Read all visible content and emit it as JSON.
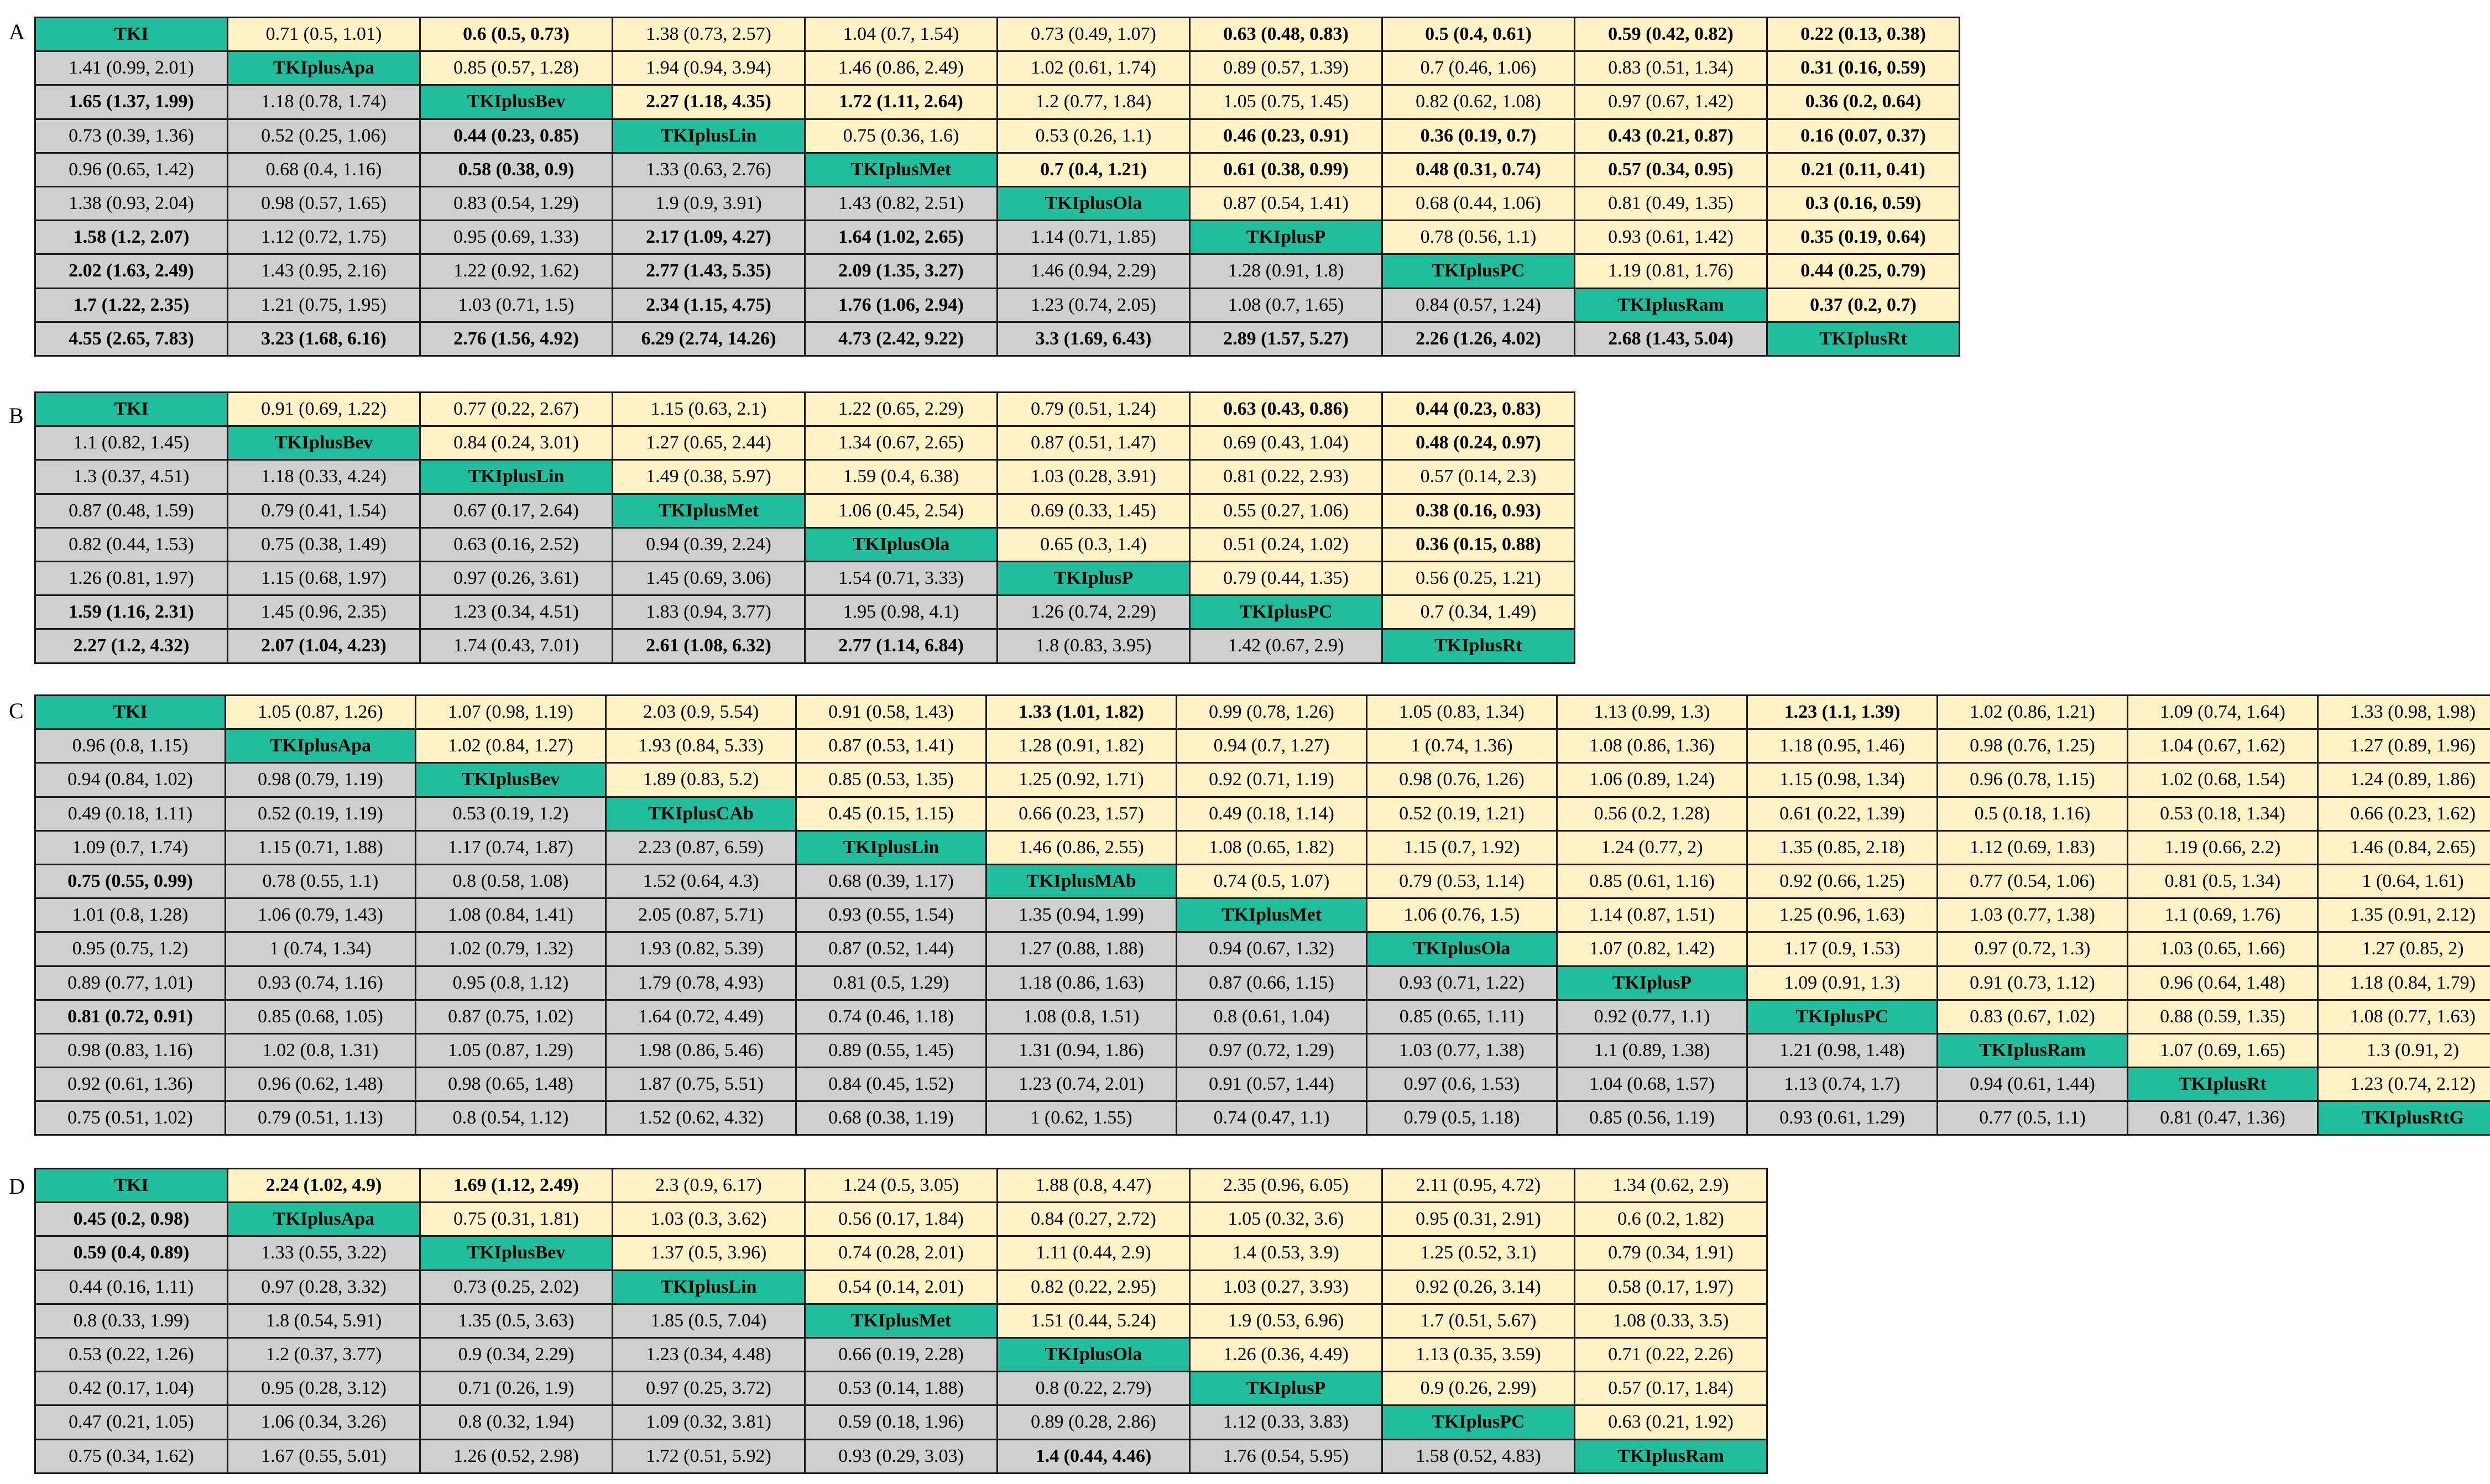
{
  "colors": {
    "diagonal": "#1fbf9d",
    "lower": "#cfcfcf",
    "upper": "#fff2c4",
    "red": "#ff1a1a",
    "blue": "#2f79c4"
  },
  "panels": [
    {
      "label": "A",
      "rows": [
        [
          "TKI",
          "0.71 (0.5, 1.01)",
          "r:0.6 (0.5, 0.73)",
          "1.38 (0.73, 2.57)",
          "1.04 (0.7, 1.54)",
          "0.73 (0.49, 1.07)",
          "r:0.63 (0.48, 0.83)",
          "r:0.5 (0.4, 0.61)",
          "r:0.59 (0.42, 0.82)",
          "r:0.22 (0.13, 0.38)"
        ],
        [
          "1.41 (0.99, 2.01)",
          "TKIplusApa",
          "0.85 (0.57, 1.28)",
          "1.94 (0.94, 3.94)",
          "1.46 (0.86, 2.49)",
          "1.02 (0.61, 1.74)",
          "0.89 (0.57, 1.39)",
          "0.7 (0.46, 1.06)",
          "0.83 (0.51, 1.34)",
          "r:0.31 (0.16, 0.59)"
        ],
        [
          "b:1.65 (1.37, 1.99)",
          "1.18 (0.78, 1.74)",
          "TKIplusBev",
          "bl:2.27 (1.18, 4.35)",
          "bl:1.72 (1.11, 2.64)",
          "1.2 (0.77, 1.84)",
          "1.05 (0.75, 1.45)",
          "0.82 (0.62, 1.08)",
          "0.97 (0.67, 1.42)",
          "r:0.36 (0.2, 0.64)"
        ],
        [
          "0.73 (0.39, 1.36)",
          "0.52 (0.25, 1.06)",
          "b:0.44 (0.23, 0.85)",
          "TKIplusLin",
          "0.75 (0.36, 1.6)",
          "0.53 (0.26, 1.1)",
          "r:0.46 (0.23, 0.91)",
          "r:0.36 (0.19, 0.7)",
          "r:0.43 (0.21, 0.87)",
          "r:0.16 (0.07, 0.37)"
        ],
        [
          "0.96 (0.65, 1.42)",
          "0.68 (0.4, 1.16)",
          "b:0.58 (0.38, 0.9)",
          "1.33 (0.63, 2.76)",
          "TKIplusMet",
          "b:0.7 (0.4, 1.21)",
          "r:0.61 (0.38, 0.99)",
          "r:0.48 (0.31, 0.74)",
          "r:0.57 (0.34, 0.95)",
          "r:0.21 (0.11, 0.41)"
        ],
        [
          "1.38 (0.93, 2.04)",
          "0.98 (0.57, 1.65)",
          "0.83 (0.54, 1.29)",
          "1.9 (0.9, 3.91)",
          "1.43 (0.82, 2.51)",
          "TKIplusOla",
          "0.87 (0.54, 1.41)",
          "0.68 (0.44, 1.06)",
          "0.81 (0.49, 1.35)",
          "r:0.3 (0.16, 0.59)"
        ],
        [
          "b:1.58 (1.2, 2.07)",
          "1.12 (0.72, 1.75)",
          "0.95 (0.69, 1.33)",
          "b:2.17 (1.09, 4.27)",
          "b:1.64 (1.02, 2.65)",
          "1.14 (0.71, 1.85)",
          "TKIplusP",
          "0.78 (0.56, 1.1)",
          "0.93 (0.61, 1.42)",
          "r:0.35 (0.19, 0.64)"
        ],
        [
          "b:2.02 (1.63, 2.49)",
          "1.43 (0.95, 2.16)",
          "1.22 (0.92, 1.62)",
          "b:2.77 (1.43, 5.35)",
          "b:2.09 (1.35, 3.27)",
          "1.46 (0.94, 2.29)",
          "1.28 (0.91, 1.8)",
          "TKIplusPC",
          "1.19 (0.81, 1.76)",
          "r:0.44 (0.25, 0.79)"
        ],
        [
          "b:1.7 (1.22, 2.35)",
          "1.21 (0.75, 1.95)",
          "1.03 (0.71, 1.5)",
          "b:2.34 (1.15, 4.75)",
          "b:1.76 (1.06, 2.94)",
          "1.23 (0.74, 2.05)",
          "1.08 (0.7, 1.65)",
          "0.84 (0.57, 1.24)",
          "TKIplusRam",
          "r:0.37 (0.2, 0.7)"
        ],
        [
          "b:4.55 (2.65, 7.83)",
          "b:3.23 (1.68, 6.16)",
          "b:2.76 (1.56, 4.92)",
          "b:6.29 (2.74, 14.26)",
          "b:4.73 (2.42, 9.22)",
          "b:3.3 (1.69, 6.43)",
          "b:2.89 (1.57, 5.27)",
          "b:2.26 (1.26, 4.02)",
          "b:2.68 (1.43, 5.04)",
          "TKIplusRt"
        ]
      ]
    },
    {
      "label": "B",
      "rows": [
        [
          "TKI",
          "0.91 (0.69, 1.22)",
          "0.77 (0.22, 2.67)",
          "1.15 (0.63, 2.1)",
          "1.22 (0.65, 2.29)",
          "0.79 (0.51, 1.24)",
          "r:0.63 (0.43, 0.86)",
          "r:0.44 (0.23, 0.83)"
        ],
        [
          "1.1 (0.82, 1.45)",
          "TKIplusBev",
          "0.84 (0.24, 3.01)",
          "1.27 (0.65, 2.44)",
          "1.34 (0.67, 2.65)",
          "0.87 (0.51, 1.47)",
          "0.69 (0.43, 1.04)",
          "r:0.48 (0.24, 0.97)"
        ],
        [
          "1.3 (0.37, 4.51)",
          "1.18 (0.33, 4.24)",
          "TKIplusLin",
          "1.49 (0.38, 5.97)",
          "1.59 (0.4, 6.38)",
          "1.03 (0.28, 3.91)",
          "0.81 (0.22, 2.93)",
          "0.57 (0.14, 2.3)"
        ],
        [
          "0.87 (0.48, 1.59)",
          "0.79 (0.41, 1.54)",
          "0.67 (0.17, 2.64)",
          "TKIplusMet",
          "1.06 (0.45, 2.54)",
          "0.69 (0.33, 1.45)",
          "0.55 (0.27, 1.06)",
          "r:0.38 (0.16, 0.93)"
        ],
        [
          "0.82 (0.44, 1.53)",
          "0.75 (0.38, 1.49)",
          "0.63 (0.16, 2.52)",
          "0.94 (0.39, 2.24)",
          "TKIplusOla",
          "0.65 (0.3, 1.4)",
          "0.51 (0.24, 1.02)",
          "r:0.36 (0.15, 0.88)"
        ],
        [
          "1.26 (0.81, 1.97)",
          "1.15 (0.68, 1.97)",
          "0.97 (0.26, 3.61)",
          "1.45 (0.69, 3.06)",
          "1.54 (0.71, 3.33)",
          "TKIplusP",
          "0.79 (0.44, 1.35)",
          "0.56 (0.25, 1.21)"
        ],
        [
          "b:1.59 (1.16, 2.31)",
          "1.45 (0.96, 2.35)",
          "1.23 (0.34, 4.51)",
          "1.83 (0.94, 3.77)",
          "1.95 (0.98, 4.1)",
          "1.26 (0.74, 2.29)",
          "TKIplusPC",
          "0.7 (0.34, 1.49)"
        ],
        [
          "b:2.27 (1.2, 4.32)",
          "b:2.07 (1.04, 4.23)",
          "1.74 (0.43, 7.01)",
          "b:2.61 (1.08, 6.32)",
          "b:2.77 (1.14, 6.84)",
          "1.8 (0.83, 3.95)",
          "1.42 (0.67, 2.9)",
          "TKIplusRt"
        ]
      ]
    },
    {
      "label": "C",
      "rows": [
        [
          "TKI",
          "1.05 (0.87, 1.26)",
          "1.07 (0.98, 1.19)",
          "2.03 (0.9, 5.54)",
          "0.91 (0.58, 1.43)",
          "r:1.33 (1.01, 1.82)",
          "0.99 (0.78, 1.26)",
          "1.05 (0.83, 1.34)",
          "1.13 (0.99, 1.3)",
          "r:1.23 (1.1, 1.39)",
          "1.02 (0.86, 1.21)",
          "1.09 (0.74, 1.64)",
          "1.33 (0.98, 1.98)"
        ],
        [
          "0.96 (0.8, 1.15)",
          "TKIplusApa",
          "1.02 (0.84, 1.27)",
          "1.93 (0.84, 5.33)",
          "0.87 (0.53, 1.41)",
          "1.28 (0.91, 1.82)",
          "0.94 (0.7, 1.27)",
          "1 (0.74, 1.36)",
          "1.08 (0.86, 1.36)",
          "1.18 (0.95, 1.46)",
          "0.98 (0.76, 1.25)",
          "1.04 (0.67, 1.62)",
          "1.27 (0.89, 1.96)"
        ],
        [
          "0.94 (0.84, 1.02)",
          "0.98 (0.79, 1.19)",
          "TKIplusBev",
          "1.89 (0.83, 5.2)",
          "0.85 (0.53, 1.35)",
          "1.25 (0.92, 1.71)",
          "0.92 (0.71, 1.19)",
          "0.98 (0.76, 1.26)",
          "1.06 (0.89, 1.24)",
          "1.15 (0.98, 1.34)",
          "0.96 (0.78, 1.15)",
          "1.02 (0.68, 1.54)",
          "1.24 (0.89, 1.86)"
        ],
        [
          "0.49 (0.18, 1.11)",
          "0.52 (0.19, 1.19)",
          "0.53 (0.19, 1.2)",
          "TKIplusCAb",
          "0.45 (0.15, 1.15)",
          "0.66 (0.23, 1.57)",
          "0.49 (0.18, 1.14)",
          "0.52 (0.19, 1.21)",
          "0.56 (0.2, 1.28)",
          "0.61 (0.22, 1.39)",
          "0.5 (0.18, 1.16)",
          "0.53 (0.18, 1.34)",
          "0.66 (0.23, 1.62)"
        ],
        [
          "1.09 (0.7, 1.74)",
          "1.15 (0.71, 1.88)",
          "1.17 (0.74, 1.87)",
          "2.23 (0.87, 6.59)",
          "TKIplusLin",
          "1.46 (0.86, 2.55)",
          "1.08 (0.65, 1.82)",
          "1.15 (0.7, 1.92)",
          "1.24 (0.77, 2)",
          "1.35 (0.85, 2.18)",
          "1.12 (0.69, 1.83)",
          "1.19 (0.66, 2.2)",
          "1.46 (0.84, 2.65)"
        ],
        [
          "b:0.75 (0.55, 0.99)",
          "0.78 (0.55, 1.1)",
          "0.8 (0.58, 1.08)",
          "1.52 (0.64, 4.3)",
          "0.68 (0.39, 1.17)",
          "TKIplusMAb",
          "0.74 (0.5, 1.07)",
          "0.79 (0.53, 1.14)",
          "0.85 (0.61, 1.16)",
          "0.92 (0.66, 1.25)",
          "0.77 (0.54, 1.06)",
          "0.81 (0.5, 1.34)",
          "1 (0.64, 1.61)"
        ],
        [
          "1.01 (0.8, 1.28)",
          "1.06 (0.79, 1.43)",
          "1.08 (0.84, 1.41)",
          "2.05 (0.87, 5.71)",
          "0.93 (0.55, 1.54)",
          "1.35 (0.94, 1.99)",
          "TKIplusMet",
          "1.06 (0.76, 1.5)",
          "1.14 (0.87, 1.51)",
          "1.25 (0.96, 1.63)",
          "1.03 (0.77, 1.38)",
          "1.1 (0.69, 1.76)",
          "1.35 (0.91, 2.12)"
        ],
        [
          "0.95 (0.75, 1.2)",
          "1 (0.74, 1.34)",
          "1.02 (0.79, 1.32)",
          "1.93 (0.82, 5.39)",
          "0.87 (0.52, 1.44)",
          "1.27 (0.88, 1.88)",
          "0.94 (0.67, 1.32)",
          "TKIplusOla",
          "1.07 (0.82, 1.42)",
          "1.17 (0.9, 1.53)",
          "0.97 (0.72, 1.3)",
          "1.03 (0.65, 1.66)",
          "1.27 (0.85, 2)"
        ],
        [
          "0.89 (0.77, 1.01)",
          "0.93 (0.74, 1.16)",
          "0.95 (0.8, 1.12)",
          "1.79 (0.78, 4.93)",
          "0.81 (0.5, 1.29)",
          "1.18 (0.86, 1.63)",
          "0.87 (0.66, 1.15)",
          "0.93 (0.71, 1.22)",
          "TKIplusP",
          "1.09 (0.91, 1.3)",
          "0.91 (0.73, 1.12)",
          "0.96 (0.64, 1.48)",
          "1.18 (0.84, 1.79)"
        ],
        [
          "b:0.81 (0.72, 0.91)",
          "0.85 (0.68, 1.05)",
          "0.87 (0.75, 1.02)",
          "1.64 (0.72, 4.49)",
          "0.74 (0.46, 1.18)",
          "1.08 (0.8, 1.51)",
          "0.8 (0.61, 1.04)",
          "0.85 (0.65, 1.11)",
          "0.92 (0.77, 1.1)",
          "TKIplusPC",
          "0.83 (0.67, 1.02)",
          "0.88 (0.59, 1.35)",
          "1.08 (0.77, 1.63)"
        ],
        [
          "0.98 (0.83, 1.16)",
          "1.02 (0.8, 1.31)",
          "1.05 (0.87, 1.29)",
          "1.98 (0.86, 5.46)",
          "0.89 (0.55, 1.45)",
          "1.31 (0.94, 1.86)",
          "0.97 (0.72, 1.29)",
          "1.03 (0.77, 1.38)",
          "1.1 (0.89, 1.38)",
          "1.21 (0.98, 1.48)",
          "TKIplusRam",
          "1.07 (0.69, 1.65)",
          "1.3 (0.91, 2)"
        ],
        [
          "0.92 (0.61, 1.36)",
          "0.96 (0.62, 1.48)",
          "0.98 (0.65, 1.48)",
          "1.87 (0.75, 5.51)",
          "0.84 (0.45, 1.52)",
          "1.23 (0.74, 2.01)",
          "0.91 (0.57, 1.44)",
          "0.97 (0.6, 1.53)",
          "1.04 (0.68, 1.57)",
          "1.13 (0.74, 1.7)",
          "0.94 (0.61, 1.44)",
          "TKIplusRt",
          "1.23 (0.74, 2.12)"
        ],
        [
          "0.75 (0.51, 1.02)",
          "0.79 (0.51, 1.13)",
          "0.8 (0.54, 1.12)",
          "1.52 (0.62, 4.32)",
          "0.68 (0.38, 1.19)",
          "1 (0.62, 1.55)",
          "0.74 (0.47, 1.1)",
          "0.79 (0.5, 1.18)",
          "0.85 (0.56, 1.19)",
          "0.93 (0.61, 1.29)",
          "0.77 (0.5, 1.1)",
          "0.81 (0.47, 1.36)",
          "TKIplusRtG"
        ]
      ]
    },
    {
      "label": "D",
      "rows": [
        [
          "TKI",
          "bl:2.24 (1.02, 4.9)",
          "bl:1.69 (1.12, 2.49)",
          "2.3 (0.9, 6.17)",
          "1.24 (0.5, 3.05)",
          "1.88 (0.8, 4.47)",
          "2.35 (0.96, 6.05)",
          "2.11 (0.95, 4.72)",
          "1.34 (0.62, 2.9)"
        ],
        [
          "b:0.45 (0.2, 0.98)",
          "TKIplusApa",
          "0.75 (0.31, 1.81)",
          "1.03 (0.3, 3.62)",
          "0.56 (0.17, 1.84)",
          "0.84 (0.27, 2.72)",
          "1.05 (0.32, 3.6)",
          "0.95 (0.31, 2.91)",
          "0.6 (0.2, 1.82)"
        ],
        [
          "b:0.59 (0.4, 0.89)",
          "1.33 (0.55, 3.22)",
          "TKIplusBev",
          "1.37 (0.5, 3.96)",
          "0.74 (0.28, 2.01)",
          "1.11 (0.44, 2.9)",
          "1.4 (0.53, 3.9)",
          "1.25 (0.52, 3.1)",
          "0.79 (0.34, 1.91)"
        ],
        [
          "0.44 (0.16, 1.11)",
          "0.97 (0.28, 3.32)",
          "0.73 (0.25, 2.02)",
          "TKIplusLin",
          "0.54 (0.14, 2.01)",
          "0.82 (0.22, 2.95)",
          "1.03 (0.27, 3.93)",
          "0.92 (0.26, 3.14)",
          "0.58 (0.17, 1.97)"
        ],
        [
          "0.8 (0.33, 1.99)",
          "1.8 (0.54, 5.91)",
          "1.35 (0.5, 3.63)",
          "1.85 (0.5, 7.04)",
          "TKIplusMet",
          "1.51 (0.44, 5.24)",
          "1.9 (0.53, 6.96)",
          "1.7 (0.51, 5.67)",
          "1.08 (0.33, 3.5)"
        ],
        [
          "0.53 (0.22, 1.26)",
          "1.2 (0.37, 3.77)",
          "0.9 (0.34, 2.29)",
          "1.23 (0.34, 4.48)",
          "0.66 (0.19, 2.28)",
          "TKIplusOla",
          "1.26 (0.36, 4.49)",
          "1.13 (0.35, 3.59)",
          "0.71 (0.22, 2.26)"
        ],
        [
          "0.42 (0.17, 1.04)",
          "0.95 (0.28, 3.12)",
          "0.71 (0.26, 1.9)",
          "0.97 (0.25, 3.72)",
          "0.53 (0.14, 1.88)",
          "0.8 (0.22, 2.79)",
          "TKIplusP",
          "0.9 (0.26, 2.99)",
          "0.57 (0.17, 1.84)"
        ],
        [
          "0.47 (0.21, 1.05)",
          "1.06 (0.34, 3.26)",
          "0.8 (0.32, 1.94)",
          "1.09 (0.32, 3.81)",
          "0.59 (0.18, 1.96)",
          "0.89 (0.28, 2.86)",
          "1.12 (0.33, 3.83)",
          "TKIplusPC",
          "0.63 (0.21, 1.92)"
        ],
        [
          "0.75 (0.34, 1.62)",
          "1.67 (0.55, 5.01)",
          "1.26 (0.52, 2.98)",
          "1.72 (0.51, 5.92)",
          "0.93 (0.29, 3.03)",
          "b:1.4 (0.44, 4.46)",
          "1.76 (0.54, 5.95)",
          "1.58 (0.52, 4.83)",
          "TKIplusRam"
        ]
      ]
    }
  ]
}
